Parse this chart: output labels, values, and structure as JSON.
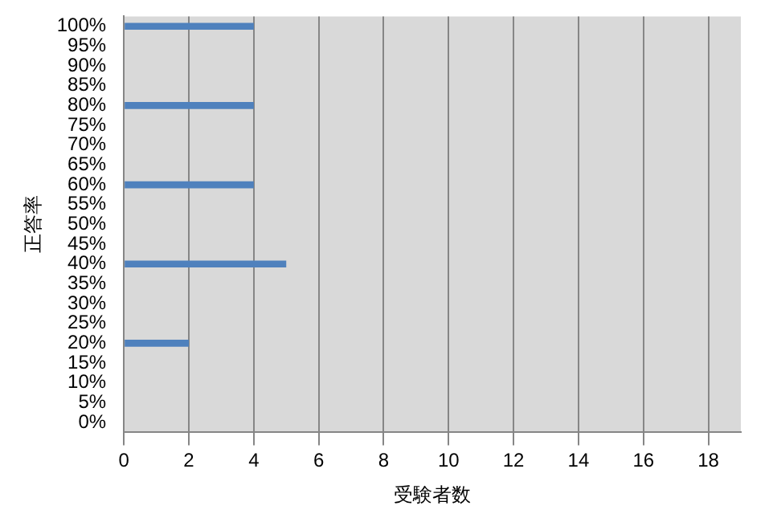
{
  "chart_data": {
    "type": "bar",
    "orientation": "horizontal",
    "xlabel": "受験者数",
    "ylabel": "正答率",
    "categories": [
      "100%",
      "95%",
      "90%",
      "85%",
      "80%",
      "75%",
      "70%",
      "65%",
      "60%",
      "55%",
      "50%",
      "45%",
      "40%",
      "35%",
      "30%",
      "25%",
      "20%",
      "15%",
      "10%",
      "5%",
      "0%"
    ],
    "values": [
      4,
      null,
      null,
      null,
      4,
      null,
      null,
      null,
      4,
      null,
      null,
      null,
      5,
      null,
      null,
      null,
      2,
      null,
      null,
      null,
      null
    ],
    "color": "#4f81bd",
    "xlim": [
      0,
      19
    ],
    "xticks": [
      0,
      2,
      4,
      6,
      8,
      10,
      12,
      14,
      16,
      18
    ],
    "grid": "x",
    "legend": false
  }
}
